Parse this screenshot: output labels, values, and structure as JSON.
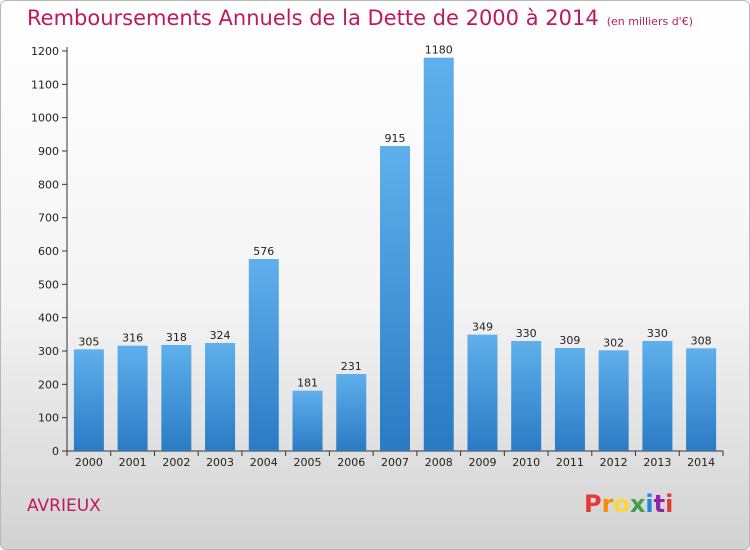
{
  "title": "Remboursements Annuels de la Dette de 2000 à 2014",
  "subtitle": "(en milliers d'€)",
  "place": "AVRIEUX",
  "logo": {
    "text": "Proxiti",
    "colors": [
      "#e53935",
      "#fb8c00",
      "#fdd835",
      "#43a047",
      "#1e88e5",
      "#8e24aa",
      "#e53935"
    ]
  },
  "colors": {
    "bar_light": "#5fb0ec",
    "bar_dark": "#2a7bc4",
    "accent": "#c2185b"
  },
  "chart_data": {
    "type": "bar",
    "categories": [
      "2000",
      "2001",
      "2002",
      "2003",
      "2004",
      "2005",
      "2006",
      "2007",
      "2008",
      "2009",
      "2010",
      "2011",
      "2012",
      "2013",
      "2014"
    ],
    "values": [
      305,
      316,
      318,
      324,
      576,
      181,
      231,
      915,
      1180,
      349,
      330,
      309,
      302,
      330,
      308
    ],
    "ylim": [
      0,
      1200
    ],
    "yticks": [
      0,
      100,
      200,
      300,
      400,
      500,
      600,
      700,
      800,
      900,
      1000,
      1100,
      1200
    ],
    "grid": false,
    "data_labels": true
  }
}
